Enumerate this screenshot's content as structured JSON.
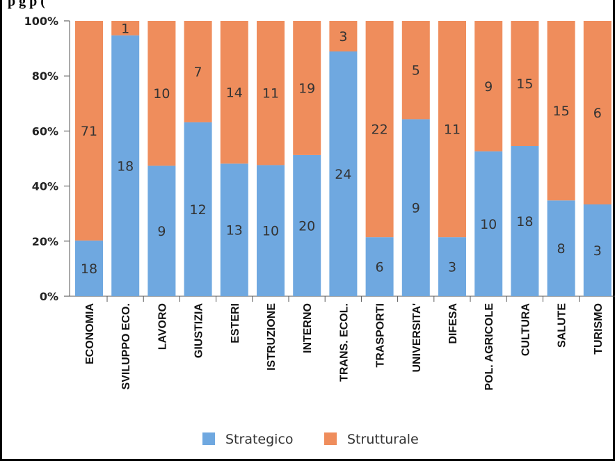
{
  "header_fragment": "p                                         g                    p           (",
  "chart_data": {
    "type": "bar",
    "stacked": true,
    "percent": true,
    "categories": [
      "ECONOMIA",
      "SVILUPPO ECO.",
      "LAVORO",
      "GIUSTIZIA",
      "ESTERI",
      "ISTRUZIONE",
      "INTERNO",
      "TRANS. ECOL.",
      "TRASPORTI",
      "UNIVERSITA'",
      "DIFESA",
      "POL. AGRICOLE",
      "CULTURA",
      "SALUTE",
      "TURISMO"
    ],
    "series": [
      {
        "name": "Strategico",
        "color": "#6fa8e0",
        "values": [
          18,
          18,
          9,
          12,
          13,
          10,
          20,
          24,
          6,
          9,
          3,
          10,
          18,
          8,
          3
        ]
      },
      {
        "name": "Strutturale",
        "color": "#ef8d5c",
        "values": [
          71,
          1,
          10,
          7,
          14,
          11,
          19,
          3,
          22,
          5,
          11,
          9,
          15,
          15,
          6
        ]
      }
    ],
    "yticks": [
      "0%",
      "20%",
      "40%",
      "60%",
      "80%",
      "100%"
    ],
    "ylim": [
      0,
      100
    ],
    "legend_position": "bottom",
    "grid": false
  }
}
